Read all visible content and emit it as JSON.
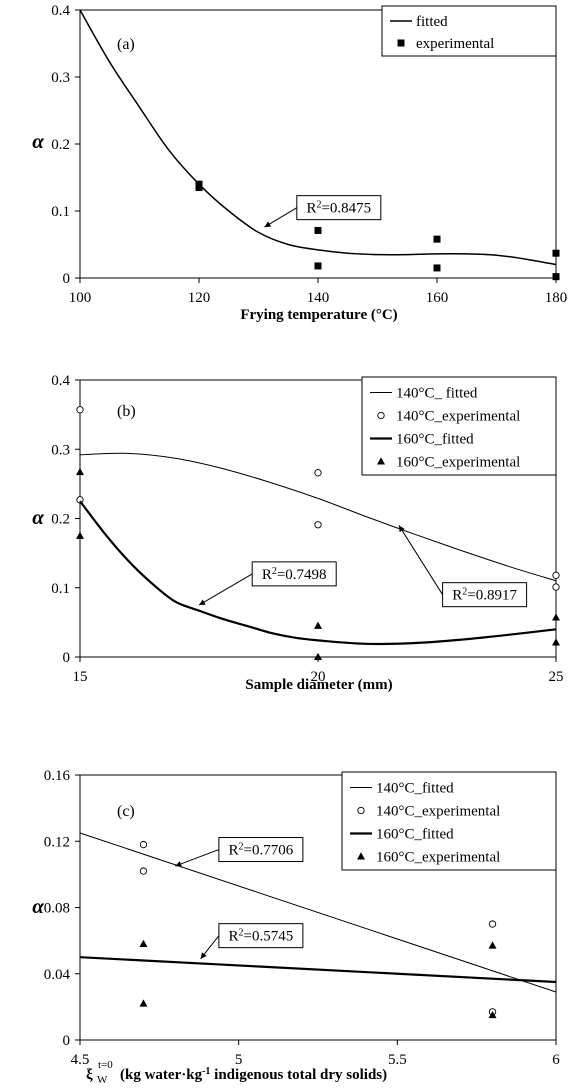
{
  "chart_data": [
    {
      "type": "scatter",
      "panel_label": "(a)",
      "xlabel": "Frying temperature (°C)",
      "ylabel": "α",
      "xlim": [
        100,
        180
      ],
      "ylim": [
        0,
        0.4
      ],
      "xticks": [
        "100",
        "120",
        "140",
        "160",
        "180"
      ],
      "yticks": [
        "0",
        "0.1",
        "0.2",
        "0.3",
        "0.4"
      ],
      "legend_position": "top-right",
      "grid": false,
      "series": [
        {
          "name": "fitted",
          "kind": "line",
          "x": [
            100,
            105,
            110,
            115,
            120,
            125,
            130,
            135,
            140,
            145,
            150,
            155,
            160,
            165,
            170,
            175,
            180
          ],
          "y": [
            0.4,
            0.322,
            0.255,
            0.19,
            0.14,
            0.1,
            0.068,
            0.05,
            0.042,
            0.037,
            0.035,
            0.035,
            0.036,
            0.036,
            0.034,
            0.028,
            0.02
          ]
        },
        {
          "name": "experimental",
          "kind": "points",
          "marker": "square",
          "x": [
            120,
            120,
            140,
            140,
            160,
            160,
            180,
            180
          ],
          "y": [
            0.135,
            0.14,
            0.071,
            0.018,
            0.058,
            0.015,
            0.037,
            0.002
          ]
        }
      ],
      "annotations": [
        {
          "text": "R²=0.8475",
          "x": 143.5,
          "y": 0.105,
          "arrow_to": [
            131,
            0.076
          ]
        }
      ]
    },
    {
      "type": "scatter",
      "panel_label": "(b)",
      "xlabel": "Sample diameter (mm)",
      "ylabel": "α",
      "xlim": [
        15,
        25
      ],
      "ylim": [
        0,
        0.4
      ],
      "xticks": [
        "15",
        "20",
        "25"
      ],
      "yticks": [
        "0",
        "0.1",
        "0.2",
        "0.3",
        "0.4"
      ],
      "legend_position": "top-right",
      "grid": false,
      "series": [
        {
          "name": "140°C_ fitted",
          "kind": "line",
          "line_width": "thin",
          "x": [
            15,
            16,
            17,
            18,
            19,
            20,
            21,
            22,
            23,
            24,
            25
          ],
          "y": [
            0.292,
            0.294,
            0.287,
            0.272,
            0.252,
            0.229,
            0.203,
            0.178,
            0.154,
            0.131,
            0.11
          ]
        },
        {
          "name": "140°C_experimental",
          "kind": "points",
          "marker": "circle",
          "x": [
            15,
            15,
            20,
            20,
            25,
            25
          ],
          "y": [
            0.357,
            0.227,
            0.266,
            0.191,
            0.118,
            0.101
          ]
        },
        {
          "name": "160°C_fitted",
          "kind": "line",
          "line_width": "thick",
          "x": [
            15,
            15.5,
            16,
            16.5,
            17,
            17.5,
            18,
            18.5,
            19,
            19.5,
            20,
            21,
            22,
            23,
            24,
            25
          ],
          "y": [
            0.225,
            0.18,
            0.14,
            0.107,
            0.08,
            0.067,
            0.055,
            0.045,
            0.035,
            0.028,
            0.024,
            0.019,
            0.02,
            0.025,
            0.032,
            0.04
          ]
        },
        {
          "name": "160°C_experimental",
          "kind": "points",
          "marker": "triangle",
          "x": [
            15,
            15,
            20,
            20,
            25,
            25
          ],
          "y": [
            0.267,
            0.175,
            0.045,
            0,
            0.057,
            0.021
          ]
        }
      ],
      "annotations": [
        {
          "text": "R²=0.7498",
          "x": 19.5,
          "y": 0.12,
          "arrow_to": [
            17.5,
            0.075
          ]
        },
        {
          "text": "R²=0.8917",
          "x": 23.5,
          "y": 0.09,
          "arrow_to": [
            21.7,
            0.19
          ]
        }
      ]
    },
    {
      "type": "scatter",
      "panel_label": "(c)",
      "xlabel": "(kg water·kg⁻¹ indigenous total dry solids)",
      "xlabel_symbol": "ξ",
      "xlabel_subscript": "W",
      "xlabel_superscript": "t=0",
      "ylabel": "α",
      "xlim": [
        4.5,
        6
      ],
      "ylim": [
        0,
        0.16
      ],
      "xticks": [
        "4.5",
        "5",
        "5.5",
        "6"
      ],
      "yticks": [
        "0",
        "0.04",
        "0.08",
        "0.12",
        "0.16"
      ],
      "legend_position": "top-right",
      "grid": false,
      "series": [
        {
          "name": "140°C_fitted",
          "kind": "line",
          "line_width": "thin",
          "x": [
            4.5,
            6
          ],
          "y": [
            0.125,
            0.029
          ]
        },
        {
          "name": "140°C_experimental",
          "kind": "points",
          "marker": "circle",
          "x": [
            4.7,
            4.7,
            5.8,
            5.8
          ],
          "y": [
            0.118,
            0.102,
            0.07,
            0.017
          ]
        },
        {
          "name": "160°C_fitted",
          "kind": "line",
          "line_width": "thick",
          "x": [
            4.5,
            6
          ],
          "y": [
            0.05,
            0.035
          ]
        },
        {
          "name": "160°C_experimental",
          "kind": "points",
          "marker": "triangle",
          "x": [
            4.7,
            4.7,
            5.8,
            5.8
          ],
          "y": [
            0.058,
            0.022,
            0.057,
            0.015
          ]
        }
      ],
      "annotations": [
        {
          "text": "R²=0.7706",
          "x": 5.07,
          "y": 0.115,
          "arrow_to": [
            4.8,
            0.105
          ]
        },
        {
          "text": "R²=0.5745",
          "x": 5.07,
          "y": 0.063,
          "arrow_to": [
            4.88,
            0.049
          ]
        }
      ]
    }
  ]
}
